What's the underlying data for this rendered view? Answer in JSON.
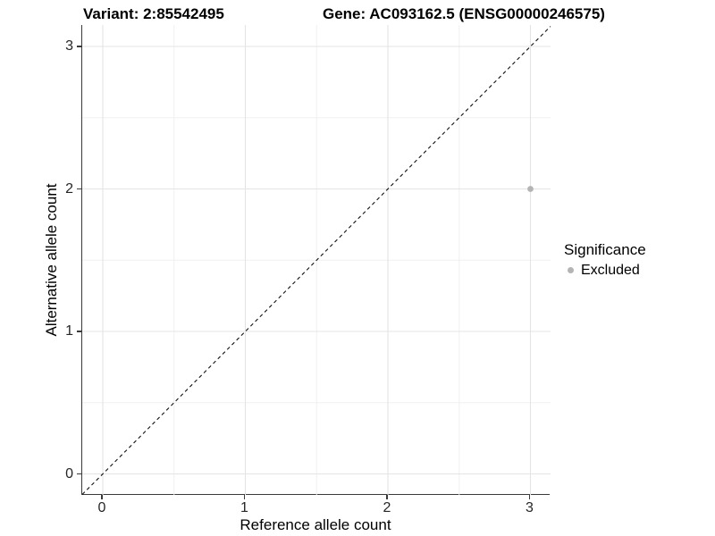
{
  "header": {
    "variant_label": "Variant: 2:85542495",
    "gene_label": "Gene: AC093162.5 (ENSG00000246575)"
  },
  "chart_data": {
    "type": "scatter",
    "title": "Variant: 2:85542495    Gene: AC093162.5 (ENSG00000246575)",
    "xlabel": "Reference allele count",
    "ylabel": "Alternative allele count",
    "xlim": [
      -0.15,
      3.15
    ],
    "ylim": [
      -0.15,
      3.15
    ],
    "x_ticks": [
      "0",
      "1",
      "2",
      "3"
    ],
    "y_ticks": [
      "0",
      "1",
      "2",
      "3"
    ],
    "grid": "major+minor",
    "grid_major_color": "#e4e4e4",
    "grid_minor_color": "#f0f0f0",
    "axis_line_color": "#3a3a3a",
    "reference_line": {
      "type": "identity",
      "style": "dashed",
      "color": "#111111"
    },
    "series": [
      {
        "name": "Excluded",
        "color": "#b4b4b4",
        "points": [
          {
            "x": 3,
            "y": 2
          }
        ]
      }
    ],
    "legend": {
      "position": "right",
      "title": "Significance",
      "items": [
        {
          "label": "Excluded",
          "color": "#b4b4b4"
        }
      ]
    }
  }
}
